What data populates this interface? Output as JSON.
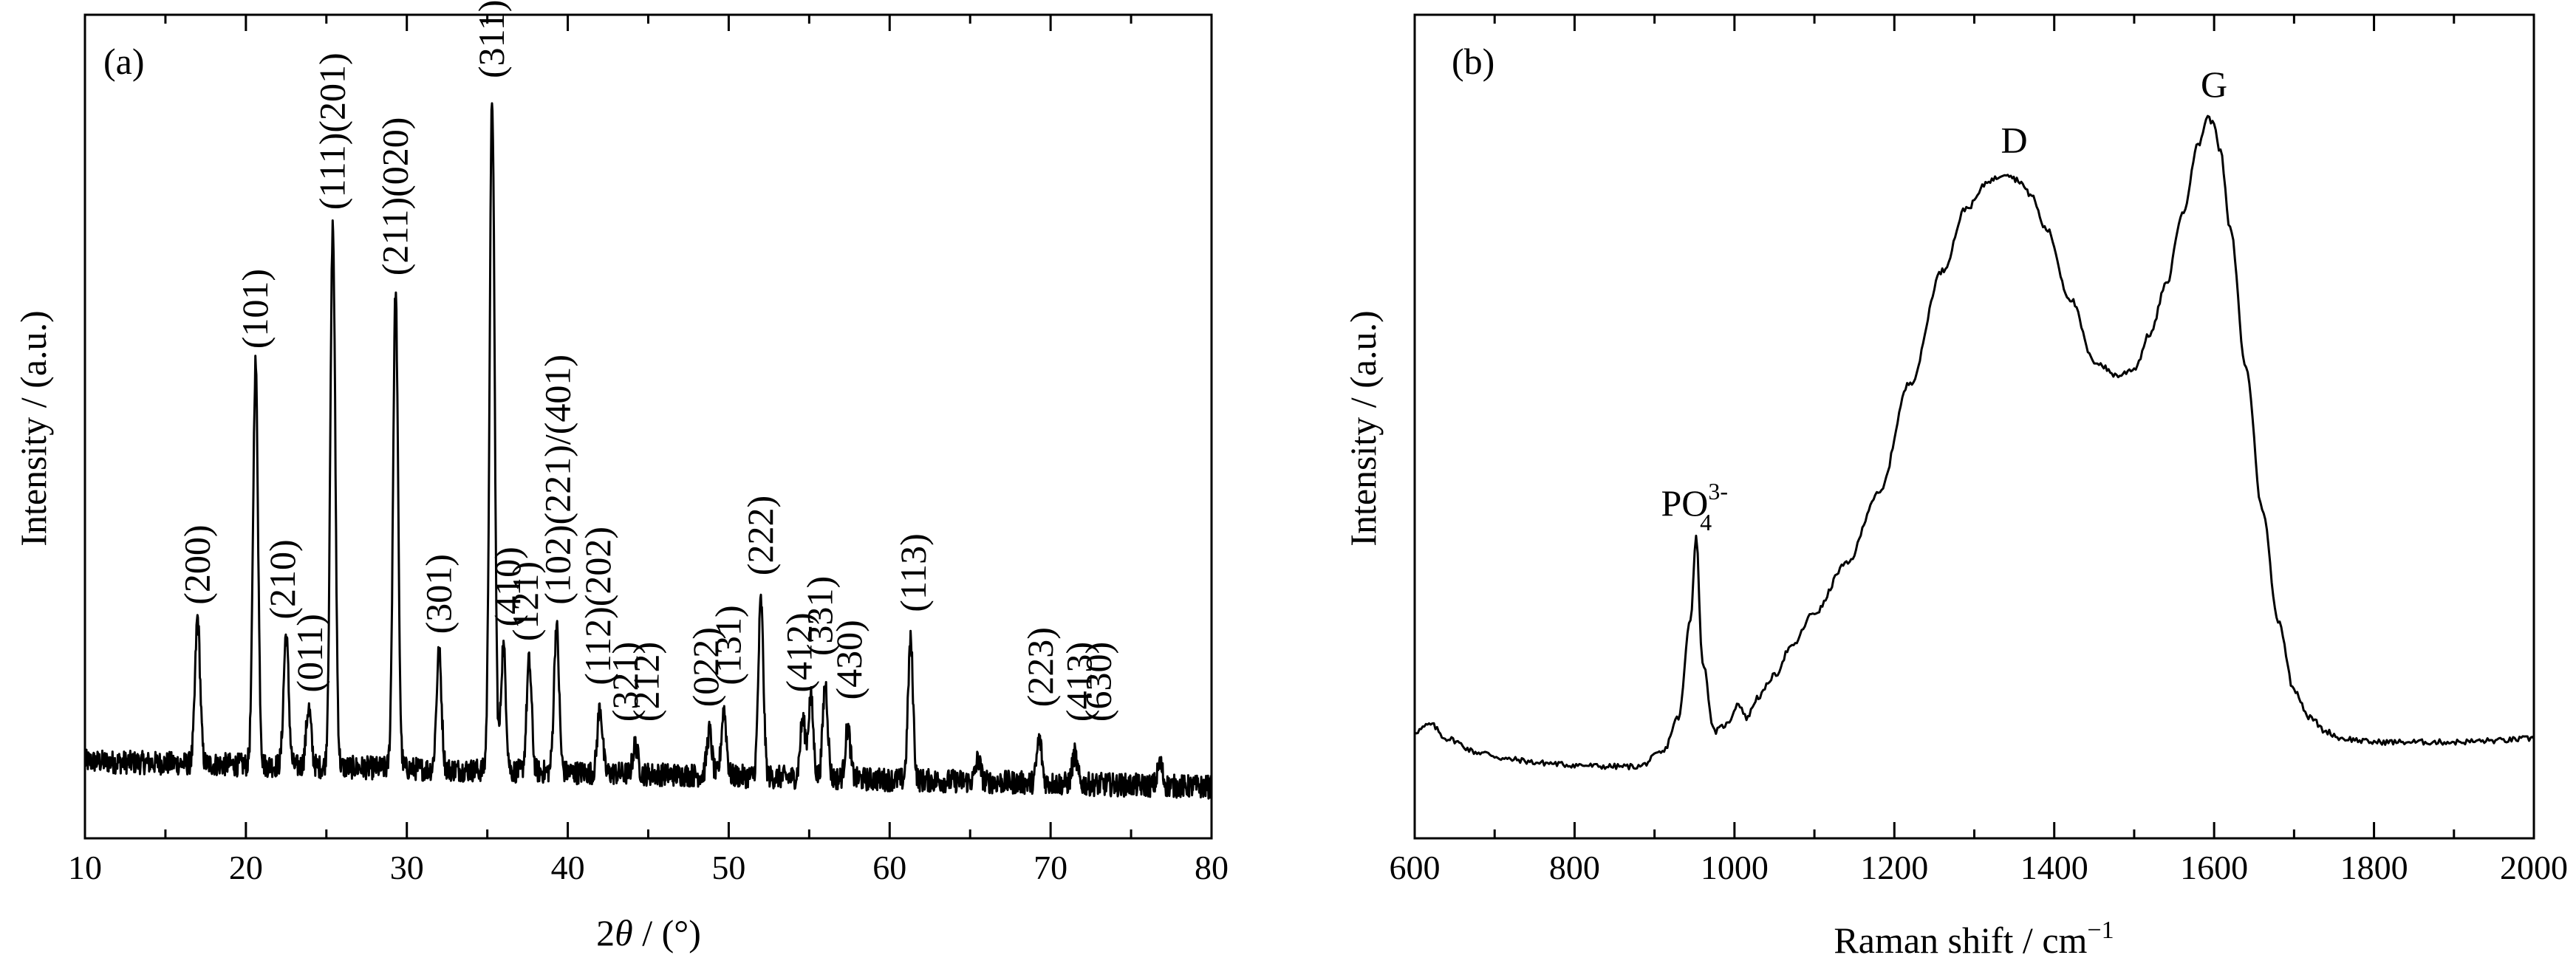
{
  "chart_data": [
    {
      "type": "line",
      "panel_label": "(a)",
      "xlabel_parts": [
        "2",
        "θ",
        " / (°)"
      ],
      "ylabel": "Intensity / (a.u.)",
      "xlim": [
        10,
        80
      ],
      "ylim": [
        0,
        100
      ],
      "y_ticks_labeled": false,
      "x_ticks": [
        10,
        20,
        30,
        40,
        50,
        60,
        70,
        80
      ],
      "x_tick_labels": [
        "10",
        "20",
        "30",
        "40",
        "50",
        "60",
        "70",
        "80"
      ],
      "peaks": [
        {
          "x": 17.0,
          "h": 20
        },
        {
          "x": 20.6,
          "h": 55
        },
        {
          "x": 22.5,
          "h": 18
        },
        {
          "x": 23.9,
          "h": 8
        },
        {
          "x": 25.4,
          "h": 74
        },
        {
          "x": 29.3,
          "h": 65
        },
        {
          "x": 32.0,
          "h": 16
        },
        {
          "x": 35.3,
          "h": 92
        },
        {
          "x": 36.0,
          "h": 17
        },
        {
          "x": 37.6,
          "h": 15
        },
        {
          "x": 39.3,
          "h": 20
        },
        {
          "x": 42.0,
          "h": 9
        },
        {
          "x": 44.2,
          "h": 4
        },
        {
          "x": 48.8,
          "h": 6
        },
        {
          "x": 49.7,
          "h": 9
        },
        {
          "x": 52.0,
          "h": 24
        },
        {
          "x": 54.6,
          "h": 8
        },
        {
          "x": 55.1,
          "h": 11
        },
        {
          "x": 56.0,
          "h": 13
        },
        {
          "x": 57.4,
          "h": 7
        },
        {
          "x": 61.3,
          "h": 19
        },
        {
          "x": 65.5,
          "h": 3
        },
        {
          "x": 69.3,
          "h": 6
        },
        {
          "x": 71.5,
          "h": 4
        },
        {
          "x": 76.8,
          "h": 3
        }
      ],
      "baseline": 8,
      "peak_labels": [
        {
          "text": "(200)",
          "x": 17.0
        },
        {
          "text": "(101)",
          "x": 20.6
        },
        {
          "text": "(210)",
          "x": 22.3
        },
        {
          "text": "(011)",
          "x": 24.0
        },
        {
          "text": "(111)(201)",
          "x": 25.4
        },
        {
          "text": "(211)(020)",
          "x": 29.3
        },
        {
          "text": "(301)",
          "x": 32.0
        },
        {
          "text": "(311)",
          "x": 35.3
        },
        {
          "text": "(410)",
          "x": 36.3
        },
        {
          "text": "(121)",
          "x": 37.4
        },
        {
          "text": "(102)(221)/(401)",
          "x": 39.4
        },
        {
          "text": "(112)(202)",
          "x": 41.9
        },
        {
          "text": "(321)",
          "x": 43.6
        },
        {
          "text": "(212)",
          "x": 44.9
        },
        {
          "text": "(022)",
          "x": 48.6
        },
        {
          "text": "(131)",
          "x": 50.0
        },
        {
          "text": "(222)",
          "x": 52.0
        },
        {
          "text": "(412)",
          "x": 54.4
        },
        {
          "text": "(331)",
          "x": 55.7
        },
        {
          "text": "(430)",
          "x": 57.5
        },
        {
          "text": "(113)",
          "x": 61.5
        },
        {
          "text": "(223)",
          "x": 69.4
        },
        {
          "text": "(413)",
          "x": 71.8
        },
        {
          "text": "(630)",
          "x": 73.0
        }
      ]
    },
    {
      "type": "line",
      "panel_label": "(b)",
      "xlabel": "Raman shift / cm",
      "xlabel_sup": "−1",
      "ylabel": "Intensity / (a.u.)",
      "xlim": [
        600,
        2000
      ],
      "ylim": [
        0,
        100
      ],
      "y_ticks_labeled": false,
      "x_ticks": [
        600,
        800,
        1000,
        1200,
        1400,
        1600,
        1800,
        2000
      ],
      "x_tick_labels": [
        "600",
        "800",
        "1000",
        "1200",
        "1400",
        "1600",
        "1800",
        "2000"
      ],
      "x": [
        600,
        620,
        640,
        680,
        720,
        760,
        800,
        840,
        880,
        910,
        930,
        945,
        952,
        960,
        975,
        990,
        1005,
        1015,
        1030,
        1050,
        1070,
        1100,
        1140,
        1180,
        1220,
        1260,
        1290,
        1320,
        1340,
        1355,
        1370,
        1390,
        1420,
        1450,
        1480,
        1500,
        1520,
        1540,
        1560,
        1580,
        1592,
        1600,
        1608,
        1620,
        1640,
        1660,
        1680,
        1700,
        1720,
        1740,
        1760,
        1800,
        1850,
        1900,
        1950,
        2000
      ],
      "y": [
        10,
        11,
        9,
        7,
        6,
        5.5,
        5.2,
        5,
        5,
        7,
        12,
        26,
        38,
        20,
        10,
        11,
        14,
        12,
        15,
        18,
        22,
        27,
        34,
        44,
        60,
        76,
        85,
        89,
        90,
        89,
        87,
        82,
        72,
        63,
        61,
        62,
        67,
        74,
        84,
        94,
        98,
        97,
        93,
        82,
        62,
        42,
        26,
        16,
        12,
        10,
        9,
        8.5,
        8.5,
        8.5,
        8.7,
        9
      ],
      "peak_labels": [
        {
          "text": "PO",
          "sub": "4",
          "sup": "3-",
          "x": 950
        },
        {
          "text": "D",
          "x": 1350
        },
        {
          "text": "G",
          "x": 1600
        }
      ]
    }
  ]
}
